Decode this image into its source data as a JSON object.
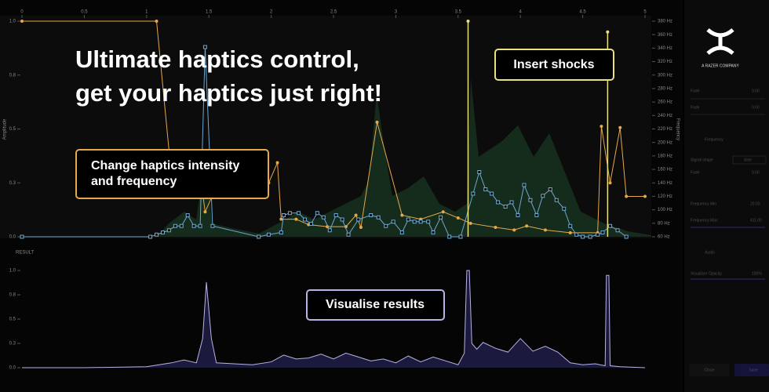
{
  "headline": {
    "line1": "Ultimate haptics control,",
    "line2": "get your haptics just right!"
  },
  "callouts": {
    "shocks": "Insert shocks",
    "intensity": {
      "line1": "Change haptics intensity",
      "line2": "and frequency"
    },
    "results": "Visualise results"
  },
  "brand": {
    "tagline": "A RAZER COMPANY"
  },
  "editor": {
    "xlim": [
      0,
      5
    ],
    "x_ticks": [
      0,
      0.5,
      1,
      1.5,
      2,
      2.5,
      3,
      3.5,
      4,
      4.5,
      5
    ],
    "amplitude": {
      "label": "Amplitude",
      "ylim": [
        0,
        1
      ],
      "ticks": [
        {
          "value": 0,
          "label": "0.0"
        },
        {
          "value": 0.25,
          "label": "0.3"
        },
        {
          "value": 0.5,
          "label": "0.5"
        },
        {
          "value": 0.75,
          "label": "0.8"
        },
        {
          "value": 1,
          "label": "1.0"
        }
      ],
      "points": [
        [
          0,
          0
        ],
        [
          1.03,
          0
        ],
        [
          1.08,
          0.01
        ],
        [
          1.13,
          0.02
        ],
        [
          1.18,
          0.03
        ],
        [
          1.23,
          0.05
        ],
        [
          1.28,
          0.05
        ],
        [
          1.33,
          0.1
        ],
        [
          1.38,
          0.05
        ],
        [
          1.43,
          0.05
        ],
        [
          1.47,
          0.88
        ],
        [
          1.53,
          0.05
        ],
        [
          1.9,
          0
        ],
        [
          1.98,
          0.01
        ],
        [
          2.08,
          0.02
        ],
        [
          2.1,
          0.1
        ],
        [
          2.15,
          0.11
        ],
        [
          2.22,
          0.11
        ],
        [
          2.27,
          0.08
        ],
        [
          2.32,
          0.06
        ],
        [
          2.37,
          0.11
        ],
        [
          2.42,
          0.09
        ],
        [
          2.47,
          0.03
        ],
        [
          2.52,
          0.1
        ],
        [
          2.57,
          0.08
        ],
        [
          2.62,
          0.01
        ],
        [
          2.7,
          0.08
        ],
        [
          2.8,
          0.1
        ],
        [
          2.86,
          0.09
        ],
        [
          2.92,
          0.05
        ],
        [
          2.98,
          0.07
        ],
        [
          3.05,
          0.02
        ],
        [
          3.1,
          0.08
        ],
        [
          3.15,
          0.07
        ],
        [
          3.2,
          0.07
        ],
        [
          3.26,
          0.07
        ],
        [
          3.3,
          0.02
        ],
        [
          3.36,
          0.09
        ],
        [
          3.43,
          0
        ],
        [
          3.52,
          0
        ],
        [
          3.62,
          0.2
        ],
        [
          3.67,
          0.3
        ],
        [
          3.72,
          0.22
        ],
        [
          3.77,
          0.2
        ],
        [
          3.82,
          0.16
        ],
        [
          3.88,
          0.14
        ],
        [
          3.93,
          0.16
        ],
        [
          3.98,
          0.1
        ],
        [
          4.03,
          0.24
        ],
        [
          4.08,
          0.17
        ],
        [
          4.13,
          0.1
        ],
        [
          4.18,
          0.19
        ],
        [
          4.24,
          0.22
        ],
        [
          4.29,
          0.17
        ],
        [
          4.35,
          0.13
        ],
        [
          4.4,
          0.05
        ],
        [
          4.45,
          0.01
        ],
        [
          4.5,
          0
        ],
        [
          4.56,
          0
        ],
        [
          4.62,
          0.01
        ],
        [
          4.66,
          0.02
        ],
        [
          4.72,
          0.05
        ],
        [
          4.78,
          0.03
        ],
        [
          4.85,
          0
        ]
      ]
    },
    "frequency": {
      "label": "Frequency",
      "ylim": [
        60,
        380
      ],
      "ticks": [
        {
          "value": 60,
          "label": "60 Hz"
        },
        {
          "value": 80,
          "label": "80 Hz"
        },
        {
          "value": 100,
          "label": "100 Hz"
        },
        {
          "value": 120,
          "label": "120 Hz"
        },
        {
          "value": 140,
          "label": "140 Hz"
        },
        {
          "value": 160,
          "label": "160 Hz"
        },
        {
          "value": 180,
          "label": "180 Hz"
        },
        {
          "value": 200,
          "label": "200 Hz"
        },
        {
          "value": 220,
          "label": "220 Hz"
        },
        {
          "value": 240,
          "label": "240 Hz"
        },
        {
          "value": 260,
          "label": "260 Hz"
        },
        {
          "value": 280,
          "label": "280 Hz"
        },
        {
          "value": 300,
          "label": "300 Hz"
        },
        {
          "value": 320,
          "label": "320 Hz"
        },
        {
          "value": 340,
          "label": "340 Hz"
        },
        {
          "value": 360,
          "label": "360 Hz"
        },
        {
          "value": 380,
          "label": "380 Hz"
        }
      ],
      "points": [
        [
          0,
          380
        ],
        [
          1.08,
          380
        ],
        [
          1.2,
          150
        ],
        [
          1.42,
          166
        ],
        [
          1.47,
          97
        ],
        [
          1.55,
          130
        ],
        [
          1.98,
          140
        ],
        [
          2.05,
          170
        ],
        [
          2.08,
          86
        ],
        [
          2.2,
          86
        ],
        [
          2.3,
          78
        ],
        [
          2.45,
          75
        ],
        [
          2.6,
          75
        ],
        [
          2.68,
          92
        ],
        [
          2.72,
          74
        ],
        [
          2.85,
          230
        ],
        [
          3.05,
          92
        ],
        [
          3.2,
          86
        ],
        [
          3.38,
          97
        ],
        [
          3.5,
          88
        ],
        [
          3.6,
          80
        ],
        [
          3.8,
          74
        ],
        [
          3.95,
          70
        ],
        [
          4.05,
          76
        ],
        [
          4.2,
          70
        ],
        [
          4.4,
          66
        ],
        [
          4.62,
          66
        ],
        [
          4.65,
          224
        ],
        [
          4.72,
          140
        ],
        [
          4.8,
          222
        ],
        [
          4.85,
          120
        ],
        [
          5,
          120
        ]
      ]
    },
    "shocks": [
      [
        3.58,
        1
      ],
      [
        4.7,
        0.95
      ]
    ],
    "result": {
      "label": "RESULT",
      "ylim": [
        0,
        1
      ],
      "ticks": [
        {
          "value": 0,
          "label": "0.0"
        },
        {
          "value": 0.25,
          "label": "0.3"
        },
        {
          "value": 0.5,
          "label": "0.5"
        },
        {
          "value": 0.75,
          "label": "0.8"
        },
        {
          "value": 1,
          "label": "1.0"
        }
      ],
      "x": [
        0,
        0.5,
        1,
        1.1,
        1.2,
        1.3,
        1.4,
        1.45,
        1.48,
        1.52,
        1.56,
        1.7,
        1.85,
        2,
        2.1,
        2.2,
        2.3,
        2.4,
        2.5,
        2.6,
        2.7,
        2.8,
        2.9,
        3,
        3.1,
        3.2,
        3.3,
        3.4,
        3.5,
        3.55,
        3.57,
        3.59,
        3.61,
        3.65,
        3.7,
        3.8,
        3.9,
        4,
        4.1,
        4.2,
        4.3,
        4.4,
        4.5,
        4.6,
        4.68,
        4.69,
        4.71,
        4.72,
        4.8,
        5
      ],
      "values": [
        0,
        0,
        0.01,
        0.03,
        0.05,
        0.08,
        0.05,
        0.3,
        0.88,
        0.3,
        0.05,
        0.04,
        0.03,
        0.06,
        0.13,
        0.09,
        0.1,
        0.14,
        0.09,
        0.15,
        0.11,
        0.07,
        0.09,
        0.05,
        0.12,
        0.06,
        0.11,
        0.07,
        0.03,
        0.15,
        1,
        1,
        0.25,
        0.19,
        0.26,
        0.2,
        0.16,
        0.3,
        0.17,
        0.22,
        0.16,
        0.05,
        0.03,
        0.04,
        0.02,
        0.95,
        0.95,
        0.02,
        0.01,
        0
      ]
    }
  },
  "panel": {
    "fade1": "Fade",
    "fade2": "Fade",
    "v1": "0.00",
    "v2": "0.00",
    "frequency": "Frequency",
    "signal_shape": "Signal shape",
    "sine": "Sine",
    "fade3": "Fade",
    "v3": "0.00",
    "freq_min": "Frequency Min",
    "v4": "20.00",
    "freq_max": "Frequency Max",
    "v5": "411.00",
    "audio": "Audio",
    "opacity": "Visualiser Opacity",
    "v6": "100%",
    "close": "Close",
    "save": "Save"
  }
}
